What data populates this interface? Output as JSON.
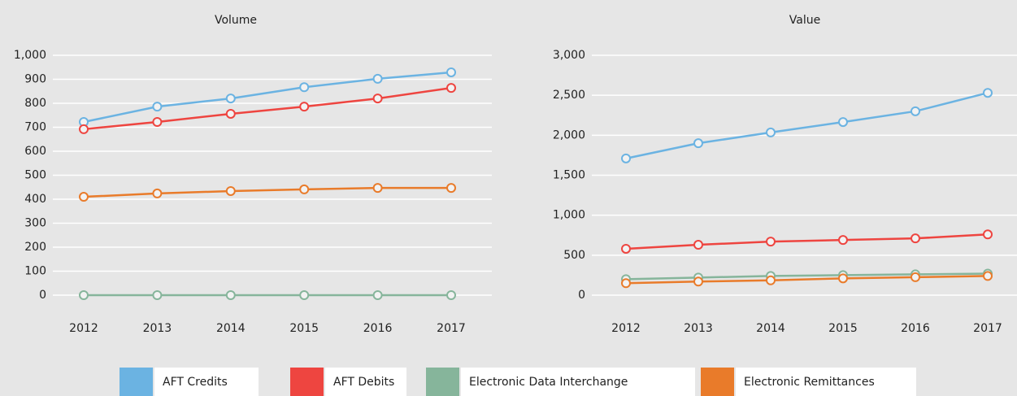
{
  "chart_data": [
    {
      "type": "line",
      "title": "Volume",
      "categories": [
        "2012",
        "2013",
        "2014",
        "2015",
        "2016",
        "2017"
      ],
      "ylim": [
        0,
        1000
      ],
      "yticks": [
        0,
        100,
        200,
        300,
        400,
        500,
        600,
        700,
        800,
        900,
        {
          "value": 1000,
          "label": "1,000"
        }
      ],
      "grid": true,
      "series": [
        {
          "name": "AFT Credits",
          "color": "#6bb3e2",
          "values": [
            722,
            786,
            820,
            867,
            902,
            929
          ]
        },
        {
          "name": "AFT Debits",
          "color": "#ee4540",
          "values": [
            692,
            722,
            756,
            786,
            820,
            864
          ]
        },
        {
          "name": "Electronic Data Interchange",
          "color": "#86b59b",
          "values": [
            0,
            0,
            0,
            0,
            0,
            0
          ]
        },
        {
          "name": "Electronic Remittances",
          "color": "#e97b2a",
          "values": [
            410,
            424,
            434,
            441,
            447,
            447
          ]
        }
      ]
    },
    {
      "type": "line",
      "title": "Value",
      "categories": [
        "2012",
        "2013",
        "2014",
        "2015",
        "2016",
        "2017"
      ],
      "ylim": [
        0,
        3000
      ],
      "yticks": [
        0,
        500,
        {
          "value": 1000,
          "label": "1,000"
        },
        {
          "value": 1500,
          "label": "1,500"
        },
        {
          "value": 2000,
          "label": "2,000"
        },
        {
          "value": 2500,
          "label": "2,500"
        },
        {
          "value": 3000,
          "label": "3,000"
        }
      ],
      "grid": true,
      "series": [
        {
          "color": "#6bb3e2",
          "values": [
            1710,
            1900,
            2035,
            2165,
            2300,
            2530
          ]
        },
        {
          "color": "#ee4540",
          "values": [
            580,
            630,
            670,
            690,
            710,
            760
          ]
        },
        {
          "color": "#86b59b",
          "values": [
            200,
            220,
            240,
            250,
            260,
            270
          ]
        },
        {
          "color": "#e97b2a",
          "values": [
            150,
            170,
            185,
            210,
            225,
            240
          ]
        }
      ]
    }
  ]
}
